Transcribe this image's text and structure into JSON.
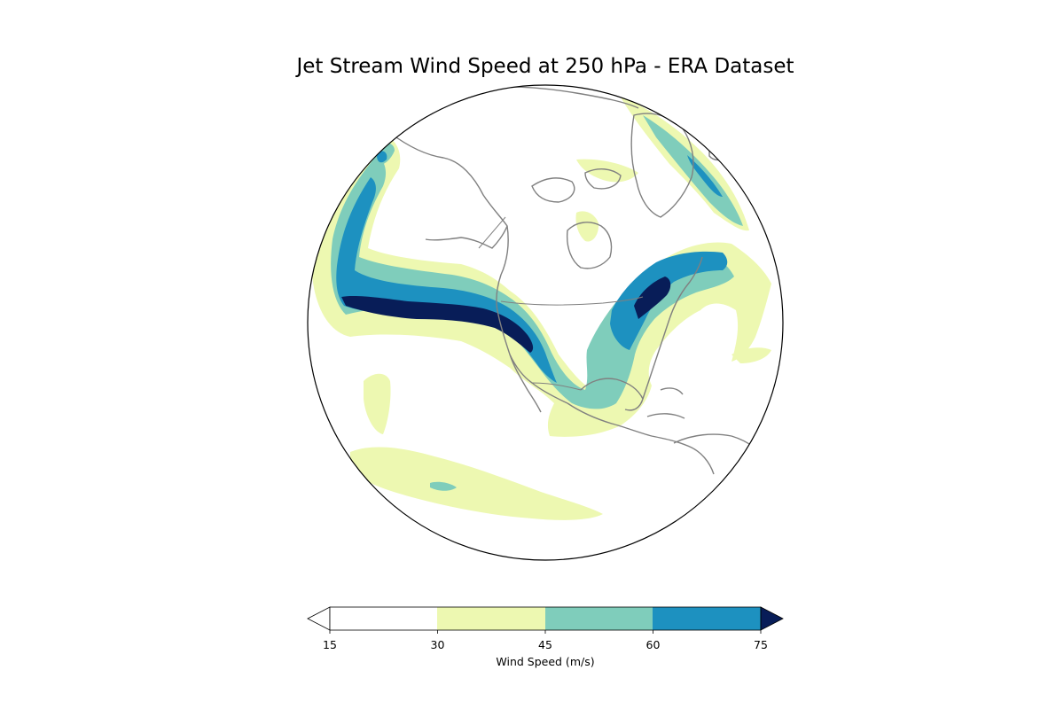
{
  "chart_data": {
    "type": "filled_contour_map",
    "title": "Jet Stream Wind Speed at 250 hPa - ERA Dataset",
    "projection": "orthographic",
    "colorbar": {
      "label": "Wind Speed (m/s)",
      "levels": [
        15,
        30,
        45,
        60,
        75
      ],
      "tick_labels": [
        "15",
        "30",
        "45",
        "60",
        "75"
      ],
      "extend": "both",
      "colors": [
        "#ffffff",
        "#edf8b1",
        "#7fcdbb",
        "#1d91c0",
        "#081d58"
      ]
    }
  },
  "colors": {
    "coastline": "#808080",
    "globe_edge": "#000000"
  }
}
